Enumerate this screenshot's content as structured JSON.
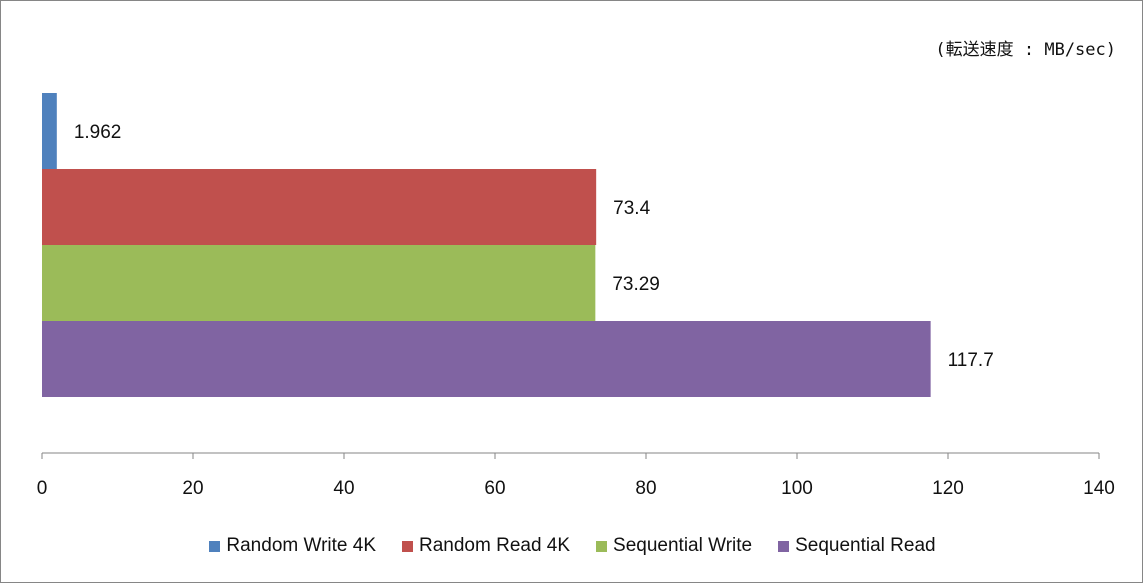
{
  "chart_data": {
    "type": "bar",
    "orientation": "horizontal",
    "unit_label": "(転送速度 : MB/sec)",
    "categories": [
      "Random Write 4K",
      "Random Read 4K",
      "Sequential Write",
      "Sequential Read"
    ],
    "series": [
      {
        "name": "Random Write 4K",
        "value": 1.962,
        "label": "1.962",
        "color": "#4f81bd"
      },
      {
        "name": "Random Read 4K",
        "value": 73.4,
        "label": "73.4",
        "color": "#c0504d"
      },
      {
        "name": "Sequential Write",
        "value": 73.29,
        "label": "73.29",
        "color": "#9bbb59"
      },
      {
        "name": "Sequential Read",
        "value": 117.7,
        "label": "117.7",
        "color": "#8064a2"
      }
    ],
    "xlim": [
      0,
      140
    ],
    "xticks": [
      "0",
      "20",
      "40",
      "60",
      "80",
      "100",
      "120",
      "140"
    ],
    "xtick_values": [
      0,
      20,
      40,
      60,
      80,
      100,
      120,
      140
    ],
    "grid": false,
    "legend_position": "bottom",
    "axis_color": "#868686"
  }
}
